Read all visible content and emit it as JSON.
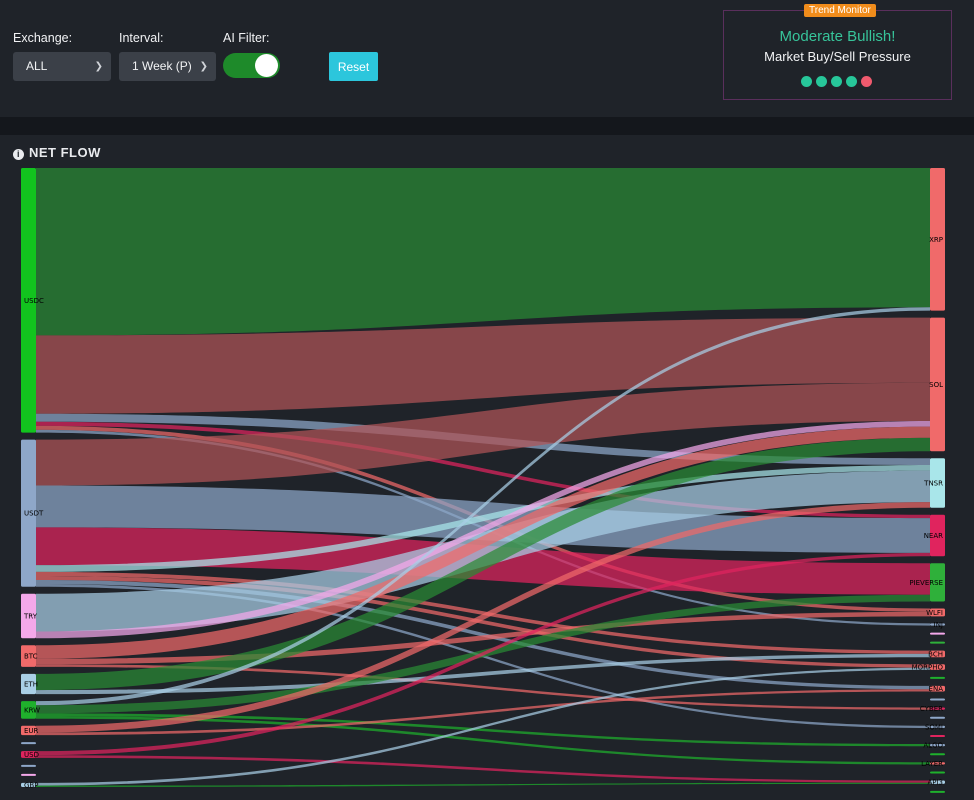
{
  "filters": {
    "exchange": {
      "label": "Exchange:",
      "value": "ALL"
    },
    "interval": {
      "label": "Interval:",
      "value": "1 Week (P)"
    },
    "ai_filter": {
      "label": "AI Filter:",
      "on": true
    },
    "reset_label": "Reset"
  },
  "trend": {
    "tag": "Trend Monitor",
    "title": "Moderate Bullish!",
    "subtitle": "Market Buy/Sell Pressure",
    "dots": [
      "#27c79a",
      "#27c79a",
      "#27c79a",
      "#27c79a",
      "#f05a6e"
    ]
  },
  "panel": {
    "title": "NET FLOW",
    "icon": "info-icon"
  },
  "chart_data": {
    "type": "sankey",
    "sources": [
      {
        "name": "USDC",
        "color": "#12c41e"
      },
      {
        "name": "USDT",
        "color": "#8ea7c9"
      },
      {
        "name": "TRY",
        "color": "#f4a8ea"
      },
      {
        "name": "BTC",
        "color": "#f06a6a"
      },
      {
        "name": "ETH",
        "color": "#a9cfe6"
      },
      {
        "name": "KRW",
        "color": "#1fb02c"
      },
      {
        "name": "EUR",
        "color": "#f06a6a"
      },
      {
        "name": "",
        "color": "#8ea7c9"
      },
      {
        "name": "USD",
        "color": "#e0245e"
      },
      {
        "name": "",
        "color": "#8ea7c9"
      },
      {
        "name": "",
        "color": "#f4a8ea"
      },
      {
        "name": "GBP",
        "color": "#a9cfe6"
      }
    ],
    "targets": [
      {
        "name": "XRP",
        "color": "#f06a6a"
      },
      {
        "name": "SOL",
        "color": "#f06a6a"
      },
      {
        "name": "TNSR",
        "color": "#a9e6ea"
      },
      {
        "name": "NEAR",
        "color": "#e0245e"
      },
      {
        "name": "PIEVERSE",
        "color": "#2fb03a"
      },
      {
        "name": "WLFI",
        "color": "#f06a6a"
      },
      {
        "name": "INJ",
        "color": "#8ea7c9"
      },
      {
        "name": "",
        "color": "#f4a8ea"
      },
      {
        "name": "",
        "color": "#2fb03a"
      },
      {
        "name": "BCH",
        "color": "#f06a6a"
      },
      {
        "name": "MORPHO",
        "color": "#f06a6a"
      },
      {
        "name": "",
        "color": "#1fb02c"
      },
      {
        "name": "ENA",
        "color": "#f06a6a"
      },
      {
        "name": "",
        "color": "#8ea7c9"
      },
      {
        "name": "CYBER",
        "color": "#e0245e"
      },
      {
        "name": "",
        "color": "#8ea7c9"
      },
      {
        "name": "SOMI",
        "color": "#8ea7c9"
      },
      {
        "name": "",
        "color": "#e0245e"
      },
      {
        "name": "ALGO",
        "color": "#8ea7c9"
      },
      {
        "name": "",
        "color": "#1fb02c"
      },
      {
        "name": "LAYER",
        "color": "#f06a6a"
      },
      {
        "name": "",
        "color": "#1fb02c"
      },
      {
        "name": "API3",
        "color": "#a9cfe6"
      },
      {
        "name": "",
        "color": "#1fb02c"
      }
    ],
    "flows": [
      {
        "source": "USDC",
        "target": "XRP",
        "value": 124,
        "color": "#2a8a35"
      },
      {
        "source": "USDC",
        "target": "SOL",
        "value": 58,
        "color": "#b05458"
      },
      {
        "source": "USDC",
        "target": "TNSR",
        "value": 6,
        "color": "#8ea7c9"
      },
      {
        "source": "USDC",
        "target": "NEAR",
        "value": 3,
        "color": "#e0245e"
      },
      {
        "source": "USDC",
        "target": "WLFI",
        "value": 3,
        "color": "#f06a6a"
      },
      {
        "source": "USDC",
        "target": "INJ",
        "value": 2,
        "color": "#8ea7c9"
      },
      {
        "source": "USDT",
        "target": "SOL",
        "value": 34,
        "color": "#b05458"
      },
      {
        "source": "USDT",
        "target": "NEAR",
        "value": 31,
        "color": "#8ea7c9"
      },
      {
        "source": "USDT",
        "target": "PIEVERSE",
        "value": 28,
        "color": "#e0245e"
      },
      {
        "source": "USDT",
        "target": "TNSR",
        "value": 5,
        "color": "#a9e6ea"
      },
      {
        "source": "USDT",
        "target": "BCH",
        "value": 3,
        "color": "#f06a6a"
      },
      {
        "source": "USDT",
        "target": "MORPHO",
        "value": 3,
        "color": "#f06a6a"
      },
      {
        "source": "USDT",
        "target": "ENA",
        "value": 3,
        "color": "#8ea7c9"
      },
      {
        "source": "USDT",
        "target": "SOMI",
        "value": 2,
        "color": "#8ea7c9"
      },
      {
        "source": "TRY",
        "target": "TNSR",
        "value": 28,
        "color": "#a9cfe6"
      },
      {
        "source": "TRY",
        "target": "SOL",
        "value": 5,
        "color": "#f4a8ea"
      },
      {
        "source": "BTC",
        "target": "SOL",
        "value": 10,
        "color": "#f06a6a"
      },
      {
        "source": "BTC",
        "target": "WLFI",
        "value": 4,
        "color": "#f06a6a"
      },
      {
        "source": "BTC",
        "target": "CYBER",
        "value": 2,
        "color": "#f06a6a"
      },
      {
        "source": "ETH",
        "target": "SOL",
        "value": 12,
        "color": "#2a8a35"
      },
      {
        "source": "ETH",
        "target": "BCH",
        "value": 3,
        "color": "#a9cfe6"
      },
      {
        "source": "KRW",
        "target": "XRP",
        "value": 3,
        "color": "#a9cfe6"
      },
      {
        "source": "KRW",
        "target": "PIEVERSE",
        "value": 6,
        "color": "#2a8a35"
      },
      {
        "source": "KRW",
        "target": "ALGO",
        "value": 2,
        "color": "#1fb02c"
      },
      {
        "source": "KRW",
        "target": "LAYER",
        "value": 2,
        "color": "#1fb02c"
      },
      {
        "source": "EUR",
        "target": "TNSR",
        "value": 5,
        "color": "#f06a6a"
      },
      {
        "source": "EUR",
        "target": "ENA",
        "value": 2,
        "color": "#f06a6a"
      },
      {
        "source": "USD",
        "target": "NEAR",
        "value": 3,
        "color": "#e0245e"
      },
      {
        "source": "USD",
        "target": "API3",
        "value": 2,
        "color": "#e0245e"
      },
      {
        "source": "GBP",
        "target": "MORPHO",
        "value": 2,
        "color": "#a9cfe6"
      },
      {
        "source": "GBP",
        "target": "API3",
        "value": 1,
        "color": "#1fb02c"
      }
    ]
  }
}
